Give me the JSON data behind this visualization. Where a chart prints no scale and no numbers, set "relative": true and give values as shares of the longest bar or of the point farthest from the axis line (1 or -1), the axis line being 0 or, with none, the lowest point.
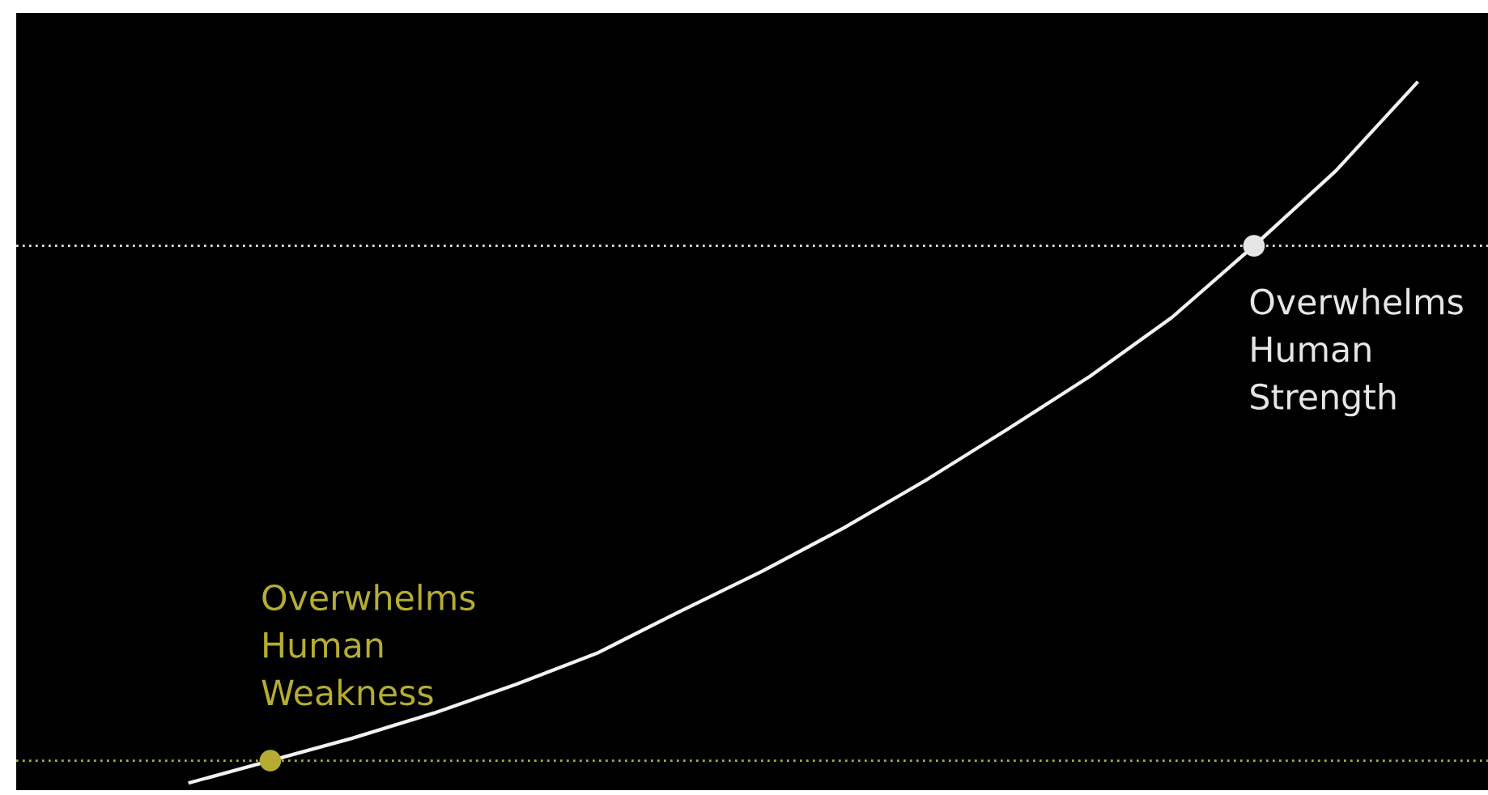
{
  "chart_data": {
    "type": "line",
    "relative": true,
    "categories": [
      null,
      null,
      null,
      null,
      null,
      null,
      null,
      null,
      null,
      null,
      null,
      null,
      null,
      null,
      null,
      null
    ],
    "series": [
      {
        "color": "#f2f2f2",
        "values": [
          0,
          0.032,
          0.064,
          0.1,
          0.141,
          0.186,
          0.245,
          0.302,
          0.364,
          0.432,
          0.505,
          0.58,
          0.664,
          0.766,
          0.873,
          1
        ]
      }
    ],
    "ref_lines": [
      {
        "axis": "y",
        "value": 0.766,
        "color": "#e6e6e6",
        "line_style": "dotted"
      },
      {
        "axis": "y",
        "value": 0.032,
        "color": "#b5ad32",
        "line_style": "dotted"
      }
    ],
    "annotations": [
      {
        "text": "Overwhelms Human Weakness",
        "y": 0.032
      },
      {
        "text": "Overwhelms Human Strength",
        "y": 0.766
      }
    ]
  }
}
